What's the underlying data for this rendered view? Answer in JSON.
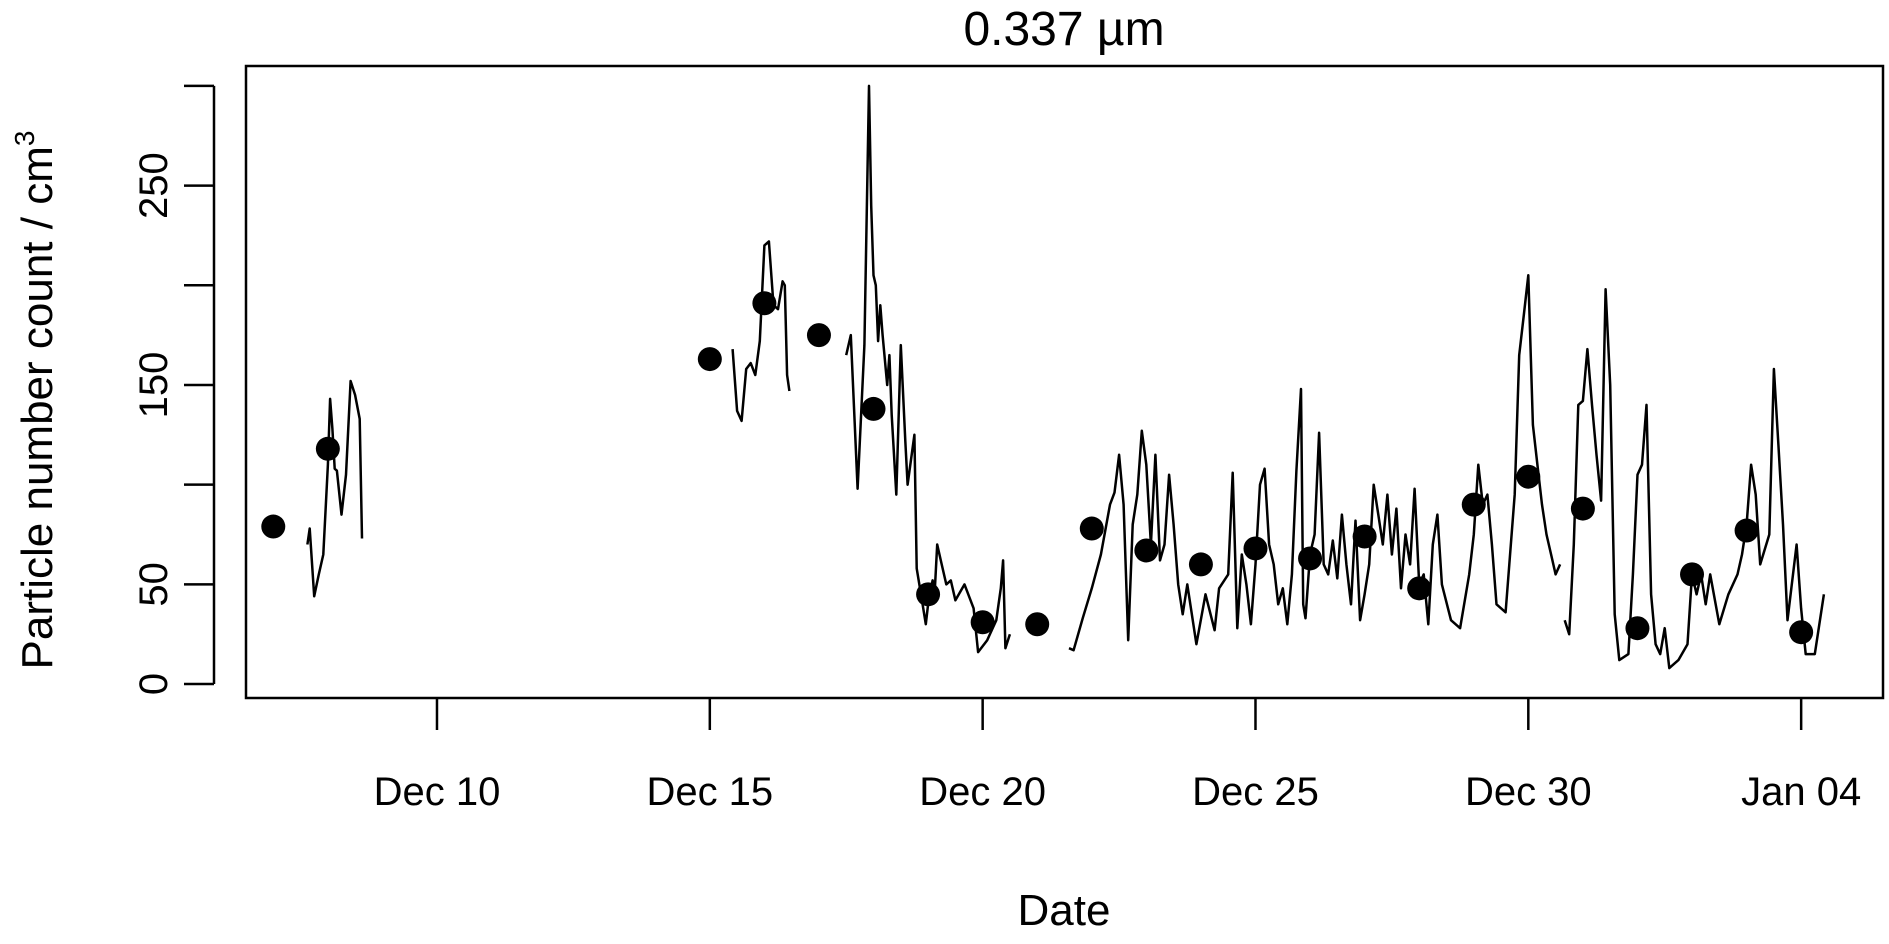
{
  "chart_data": {
    "type": "line",
    "title": "0.337 µm",
    "xlabel": "Date",
    "ylabel": "Particle number count / cm",
    "ylabel_superscript": "3",
    "x_ticks": [
      "Dec 10",
      "Dec 15",
      "Dec 20",
      "Dec 25",
      "Dec 30",
      "Jan 04"
    ],
    "y_ticks": [
      "0",
      "50",
      "150",
      "250"
    ],
    "y_tick_values": [
      0,
      50,
      100,
      150,
      200,
      250,
      300
    ],
    "xlim": [
      "2013-12-06T12:00",
      "2014-01-05T12:00"
    ],
    "ylim": [
      -7,
      310
    ],
    "grid": false,
    "line_color": "#000000",
    "series": [
      {
        "kind": "line",
        "points": [
          [
            "2013-12-07T15:00",
            70
          ],
          [
            "2013-12-07T16:00",
            78
          ],
          [
            "2013-12-07T18:00",
            44
          ],
          [
            "2013-12-07T20:00",
            55
          ],
          [
            "2013-12-07T22:00",
            65
          ],
          [
            "2013-12-08T00:00",
            110
          ],
          [
            "2013-12-08T01:00",
            143
          ],
          [
            "2013-12-08T02:00",
            128
          ],
          [
            "2013-12-08T03:00",
            108
          ],
          [
            "2013-12-08T04:00",
            107
          ],
          [
            "2013-12-08T06:00",
            85
          ],
          [
            "2013-12-08T08:00",
            105
          ],
          [
            "2013-12-08T10:00",
            152
          ],
          [
            "2013-12-08T12:00",
            145
          ],
          [
            "2013-12-08T14:00",
            133
          ],
          [
            "2013-12-08T15:00",
            73
          ],
          null,
          [
            "2013-12-15T10:00",
            168
          ],
          [
            "2013-12-15T12:00",
            137
          ],
          [
            "2013-12-15T14:00",
            132
          ],
          [
            "2013-12-15T16:00",
            158
          ],
          [
            "2013-12-15T18:00",
            161
          ],
          [
            "2013-12-15T20:00",
            155
          ],
          [
            "2013-12-15T22:00",
            172
          ],
          [
            "2013-12-16T00:00",
            220
          ],
          [
            "2013-12-16T02:00",
            222
          ],
          [
            "2013-12-16T04:00",
            190
          ],
          [
            "2013-12-16T06:00",
            188
          ],
          [
            "2013-12-16T08:00",
            202
          ],
          [
            "2013-12-16T09:00",
            200
          ],
          [
            "2013-12-16T10:00",
            155
          ],
          [
            "2013-12-16T11:00",
            147
          ],
          null,
          [
            "2013-12-17T12:00",
            165
          ],
          [
            "2013-12-17T14:00",
            175
          ],
          [
            "2013-12-17T17:00",
            98
          ],
          [
            "2013-12-17T20:00",
            170
          ],
          [
            "2013-12-17T22:00",
            300
          ],
          [
            "2013-12-17T23:00",
            240
          ],
          [
            "2013-12-18T00:00",
            205
          ],
          [
            "2013-12-18T01:00",
            200
          ],
          [
            "2013-12-18T02:00",
            172
          ],
          [
            "2013-12-18T03:00",
            190
          ],
          [
            "2013-12-18T04:00",
            175
          ],
          [
            "2013-12-18T06:00",
            150
          ],
          [
            "2013-12-18T07:00",
            165
          ],
          [
            "2013-12-18T08:00",
            135
          ],
          [
            "2013-12-18T10:00",
            95
          ],
          [
            "2013-12-18T12:00",
            170
          ],
          [
            "2013-12-18T14:00",
            122
          ],
          [
            "2013-12-18T15:00",
            100
          ],
          [
            "2013-12-18T18:00",
            125
          ],
          [
            "2013-12-18T19:00",
            58
          ],
          [
            "2013-12-18T21:00",
            44
          ],
          [
            "2013-12-18T23:00",
            30
          ],
          [
            "2013-12-19T00:00",
            40
          ],
          [
            "2013-12-19T02:00",
            52
          ],
          [
            "2013-12-19T03:00",
            48
          ],
          [
            "2013-12-19T04:00",
            70
          ],
          [
            "2013-12-19T06:00",
            60
          ],
          [
            "2013-12-19T08:00",
            50
          ],
          [
            "2013-12-19T10:00",
            52
          ],
          [
            "2013-12-19T12:00",
            42
          ],
          [
            "2013-12-19T16:00",
            50
          ],
          [
            "2013-12-19T20:00",
            38
          ],
          [
            "2013-12-19T22:00",
            16
          ],
          [
            "2013-12-20T02:00",
            22
          ],
          [
            "2013-12-20T06:00",
            32
          ],
          [
            "2013-12-20T08:00",
            48
          ],
          [
            "2013-12-20T09:00",
            62
          ],
          [
            "2013-12-20T10:00",
            18
          ],
          [
            "2013-12-20T12:00",
            25
          ],
          null,
          [
            "2013-12-21T14:00",
            18
          ],
          [
            "2013-12-21T16:00",
            17
          ],
          [
            "2013-12-21T20:00",
            33
          ],
          [
            "2013-12-22T00:00",
            48
          ],
          [
            "2013-12-22T04:00",
            65
          ],
          [
            "2013-12-22T08:00",
            90
          ],
          [
            "2013-12-22T10:00",
            96
          ],
          [
            "2013-12-22T12:00",
            115
          ],
          [
            "2013-12-22T14:00",
            90
          ],
          [
            "2013-12-22T16:00",
            22
          ],
          [
            "2013-12-22T18:00",
            80
          ],
          [
            "2013-12-22T20:00",
            95
          ],
          [
            "2013-12-22T22:00",
            127
          ],
          [
            "2013-12-23T00:00",
            110
          ],
          [
            "2013-12-23T02:00",
            70
          ],
          [
            "2013-12-23T04:00",
            115
          ],
          [
            "2013-12-23T06:00",
            62
          ],
          [
            "2013-12-23T08:00",
            70
          ],
          [
            "2013-12-23T10:00",
            105
          ],
          [
            "2013-12-23T12:00",
            80
          ],
          [
            "2013-12-23T14:00",
            50
          ],
          [
            "2013-12-23T16:00",
            35
          ],
          [
            "2013-12-23T18:00",
            50
          ],
          [
            "2013-12-23T22:00",
            20
          ],
          [
            "2013-12-24T02:00",
            45
          ],
          [
            "2013-12-24T06:00",
            27
          ],
          [
            "2013-12-24T08:00",
            48
          ],
          [
            "2013-12-24T12:00",
            55
          ],
          [
            "2013-12-24T14:00",
            106
          ],
          [
            "2013-12-24T16:00",
            28
          ],
          [
            "2013-12-24T18:00",
            65
          ],
          [
            "2013-12-24T20:00",
            50
          ],
          [
            "2013-12-24T22:00",
            30
          ],
          [
            "2013-12-25T00:00",
            60
          ],
          [
            "2013-12-25T02:00",
            100
          ],
          [
            "2013-12-25T04:00",
            108
          ],
          [
            "2013-12-25T06:00",
            70
          ],
          [
            "2013-12-25T08:00",
            60
          ],
          [
            "2013-12-25T10:00",
            40
          ],
          [
            "2013-12-25T12:00",
            48
          ],
          [
            "2013-12-25T14:00",
            30
          ],
          [
            "2013-12-25T16:00",
            55
          ],
          [
            "2013-12-25T18:00",
            107
          ],
          [
            "2013-12-25T20:00",
            148
          ],
          [
            "2013-12-25T21:00",
            40
          ],
          [
            "2013-12-25T22:00",
            33
          ],
          [
            "2013-12-26T00:00",
            65
          ],
          [
            "2013-12-26T02:00",
            75
          ],
          [
            "2013-12-26T04:00",
            126
          ],
          [
            "2013-12-26T06:00",
            60
          ],
          [
            "2013-12-26T08:00",
            55
          ],
          [
            "2013-12-26T10:00",
            72
          ],
          [
            "2013-12-26T12:00",
            53
          ],
          [
            "2013-12-26T14:00",
            85
          ],
          [
            "2013-12-26T16:00",
            60
          ],
          [
            "2013-12-26T18:00",
            40
          ],
          [
            "2013-12-26T20:00",
            82
          ],
          [
            "2013-12-26T22:00",
            32
          ],
          [
            "2013-12-27T00:00",
            45
          ],
          [
            "2013-12-27T02:00",
            60
          ],
          [
            "2013-12-27T04:00",
            100
          ],
          [
            "2013-12-27T06:00",
            85
          ],
          [
            "2013-12-27T08:00",
            70
          ],
          [
            "2013-12-27T10:00",
            95
          ],
          [
            "2013-12-27T12:00",
            65
          ],
          [
            "2013-12-27T14:00",
            88
          ],
          [
            "2013-12-27T16:00",
            48
          ],
          [
            "2013-12-27T18:00",
            75
          ],
          [
            "2013-12-27T20:00",
            60
          ],
          [
            "2013-12-27T22:00",
            98
          ],
          [
            "2013-12-28T00:00",
            50
          ],
          [
            "2013-12-28T02:00",
            55
          ],
          [
            "2013-12-28T04:00",
            30
          ],
          [
            "2013-12-28T06:00",
            70
          ],
          [
            "2013-12-28T08:00",
            85
          ],
          [
            "2013-12-28T10:00",
            50
          ],
          [
            "2013-12-28T14:00",
            32
          ],
          [
            "2013-12-28T18:00",
            28
          ],
          [
            "2013-12-28T22:00",
            55
          ],
          [
            "2013-12-29T00:00",
            75
          ],
          [
            "2013-12-29T02:00",
            110
          ],
          [
            "2013-12-29T04:00",
            90
          ],
          [
            "2013-12-29T06:00",
            95
          ],
          [
            "2013-12-29T08:00",
            70
          ],
          [
            "2013-12-29T10:00",
            40
          ],
          [
            "2013-12-29T14:00",
            36
          ],
          [
            "2013-12-29T18:00",
            95
          ],
          [
            "2013-12-29T20:00",
            165
          ],
          [
            "2013-12-29T22:00",
            185
          ],
          [
            "2013-12-30T00:00",
            205
          ],
          [
            "2013-12-30T02:00",
            130
          ],
          [
            "2013-12-30T04:00",
            110
          ],
          [
            "2013-12-30T06:00",
            90
          ],
          [
            "2013-12-30T08:00",
            75
          ],
          [
            "2013-12-30T10:00",
            65
          ],
          [
            "2013-12-30T12:00",
            55
          ],
          [
            "2013-12-30T14:00",
            60
          ],
          null,
          [
            "2013-12-30T16:00",
            32
          ],
          [
            "2013-12-30T18:00",
            25
          ],
          [
            "2013-12-30T20:00",
            70
          ],
          [
            "2013-12-30T22:00",
            140
          ],
          [
            "2013-12-31T00:00",
            142
          ],
          [
            "2013-12-31T02:00",
            168
          ],
          [
            "2013-12-31T04:00",
            140
          ],
          [
            "2013-12-31T06:00",
            115
          ],
          [
            "2013-12-31T08:00",
            92
          ],
          [
            "2013-12-31T10:00",
            198
          ],
          [
            "2013-12-31T12:00",
            150
          ],
          [
            "2013-12-31T14:00",
            35
          ],
          [
            "2013-12-31T16:00",
            12
          ],
          [
            "2013-12-31T20:00",
            15
          ],
          [
            "2013-12-31T22:00",
            55
          ],
          [
            "2014-01-01T00:00",
            105
          ],
          [
            "2014-01-01T02:00",
            110
          ],
          [
            "2014-01-01T04:00",
            140
          ],
          [
            "2014-01-01T06:00",
            45
          ],
          [
            "2014-01-01T08:00",
            20
          ],
          [
            "2014-01-01T10:00",
            15
          ],
          [
            "2014-01-01T12:00",
            28
          ],
          [
            "2014-01-01T14:00",
            8
          ],
          [
            "2014-01-01T18:00",
            12
          ],
          [
            "2014-01-01T22:00",
            20
          ],
          [
            "2014-01-02T00:00",
            55
          ],
          [
            "2014-01-02T02:00",
            45
          ],
          [
            "2014-01-02T04:00",
            55
          ],
          [
            "2014-01-02T06:00",
            40
          ],
          [
            "2014-01-02T08:00",
            55
          ],
          [
            "2014-01-02T12:00",
            30
          ],
          [
            "2014-01-02T16:00",
            45
          ],
          [
            "2014-01-02T20:00",
            55
          ],
          [
            "2014-01-02T22:00",
            65
          ],
          [
            "2014-01-03T00:00",
            80
          ],
          [
            "2014-01-03T02:00",
            110
          ],
          [
            "2014-01-03T04:00",
            95
          ],
          [
            "2014-01-03T06:00",
            60
          ],
          [
            "2014-01-03T10:00",
            75
          ],
          [
            "2014-01-03T12:00",
            158
          ],
          [
            "2014-01-03T14:00",
            120
          ],
          [
            "2014-01-03T16:00",
            80
          ],
          [
            "2014-01-03T18:00",
            32
          ],
          [
            "2014-01-03T22:00",
            70
          ],
          [
            "2014-01-04T00:00",
            38
          ],
          [
            "2014-01-04T02:00",
            15
          ],
          [
            "2014-01-04T06:00",
            15
          ],
          [
            "2014-01-04T10:00",
            45
          ]
        ]
      },
      {
        "kind": "points",
        "points": [
          [
            "2013-12-07T00:00",
            79
          ],
          [
            "2013-12-08T00:00",
            118
          ],
          [
            "2013-12-15T00:00",
            163
          ],
          [
            "2013-12-16T00:00",
            191
          ],
          [
            "2013-12-17T00:00",
            175
          ],
          [
            "2013-12-18T00:00",
            138
          ],
          [
            "2013-12-19T00:00",
            45
          ],
          [
            "2013-12-20T00:00",
            31
          ],
          [
            "2013-12-21T00:00",
            30
          ],
          [
            "2013-12-22T00:00",
            78
          ],
          [
            "2013-12-23T00:00",
            67
          ],
          [
            "2013-12-24T00:00",
            60
          ],
          [
            "2013-12-25T00:00",
            68
          ],
          [
            "2013-12-26T00:00",
            63
          ],
          [
            "2013-12-27T00:00",
            74
          ],
          [
            "2013-12-28T00:00",
            48
          ],
          [
            "2013-12-29T00:00",
            90
          ],
          [
            "2013-12-30T00:00",
            104
          ],
          [
            "2013-12-31T00:00",
            88
          ],
          [
            "2014-01-01T00:00",
            28
          ],
          [
            "2014-01-02T00:00",
            55
          ],
          [
            "2014-01-03T00:00",
            77
          ],
          [
            "2014-01-04T00:00",
            26
          ]
        ]
      }
    ]
  }
}
